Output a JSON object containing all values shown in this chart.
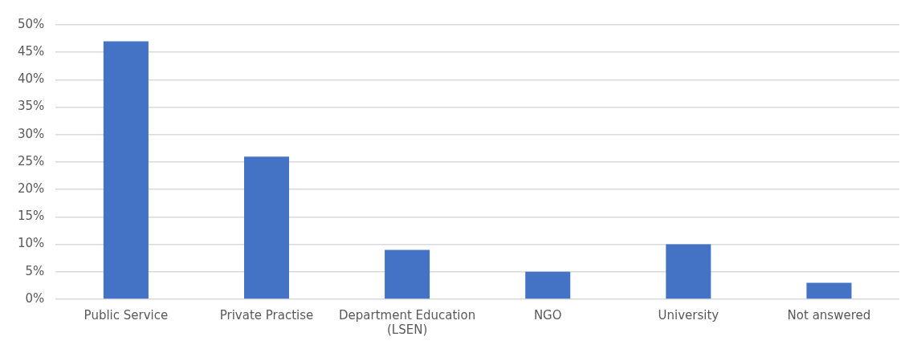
{
  "chart_data": {
    "type": "bar",
    "categories": [
      "Public Service",
      "Private Practise",
      "Department Education (LSEN)",
      "NGO",
      "University",
      "Not answered"
    ],
    "values": [
      47,
      26,
      9,
      5,
      10,
      3
    ],
    "color": "#4472c4",
    "ylim": [
      0,
      50
    ],
    "yticks": [
      {
        "value": 0,
        "label": "0%"
      },
      {
        "value": 5,
        "label": "5%"
      },
      {
        "value": 10,
        "label": "10%"
      },
      {
        "value": 15,
        "label": "15%"
      },
      {
        "value": 20,
        "label": "20%"
      },
      {
        "value": 25,
        "label": "25%"
      },
      {
        "value": 30,
        "label": "30%"
      },
      {
        "value": 35,
        "label": "35%"
      },
      {
        "value": 40,
        "label": "40%"
      },
      {
        "value": 45,
        "label": "45%"
      },
      {
        "value": 50,
        "label": "50%"
      }
    ],
    "grid": "y",
    "legend": false
  }
}
